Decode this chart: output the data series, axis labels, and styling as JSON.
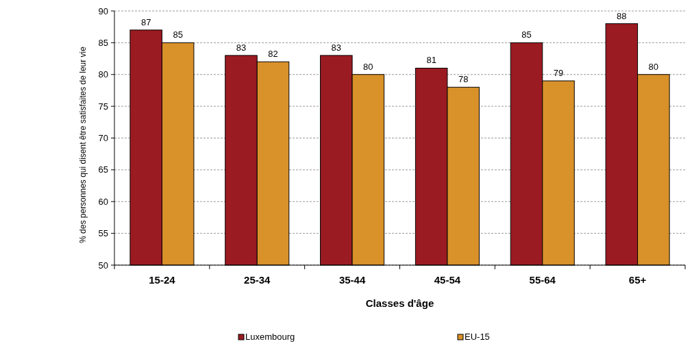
{
  "chart_data": {
    "type": "bar",
    "xlabel": "Classes d'âge",
    "ylabel": "% des personnes qui disent être satisfaites de leur vie",
    "categories": [
      "15-24",
      "25-34",
      "35-44",
      "45-54",
      "55-64",
      "65+"
    ],
    "series": [
      {
        "name": "Luxembourg",
        "color": "#9b1b22",
        "values": [
          87,
          83,
          83,
          81,
          85,
          88
        ]
      },
      {
        "name": "EU-15",
        "color": "#d9912a",
        "values": [
          85,
          82,
          80,
          78,
          79,
          80
        ]
      }
    ],
    "ylim": [
      50,
      90
    ],
    "yticks": [
      50,
      55,
      60,
      65,
      70,
      75,
      80,
      85,
      90
    ],
    "grid": "y",
    "legend": "bottom",
    "data_labels": true
  }
}
